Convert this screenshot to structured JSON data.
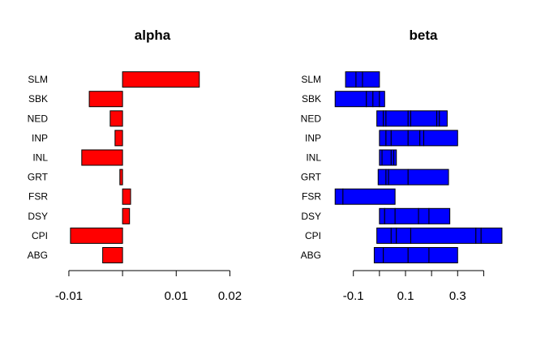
{
  "chart_data": [
    {
      "type": "bar",
      "orientation": "horizontal",
      "title": "alpha",
      "categories": [
        "ABG",
        "CPI",
        "DSY",
        "FSR",
        "GRT",
        "INL",
        "INP",
        "NED",
        "SBK",
        "SLM"
      ],
      "values": [
        -0.0037,
        -0.0097,
        0.0013,
        0.0015,
        -0.0005,
        -0.0076,
        -0.0014,
        -0.0023,
        -0.0062,
        0.0143
      ],
      "xlim": [
        -0.0115,
        0.0225
      ],
      "xticks": [
        -0.01,
        0.0,
        0.01,
        0.02
      ],
      "xtick_labels": [
        "-0.01",
        "",
        "0.01",
        "0.02"
      ],
      "bar_color": "#ff0000",
      "border_color": "#000000"
    },
    {
      "type": "bar",
      "orientation": "horizontal",
      "title": "beta",
      "categories": [
        "ABG",
        "CPI",
        "DSY",
        "FSR",
        "GRT",
        "INL",
        "INP",
        "NED",
        "SBK",
        "SLM"
      ],
      "segments": [
        [
          -0.02,
          0.015,
          0.11,
          0.19,
          0.3
        ],
        [
          -0.01,
          0.045,
          0.065,
          0.12,
          0.37,
          0.39,
          0.47
        ],
        [
          0.0,
          0.02,
          0.06,
          0.15,
          0.19,
          0.27
        ],
        [
          -0.17,
          -0.14,
          0.06
        ],
        [
          -0.005,
          0.025,
          0.035,
          0.11,
          0.265
        ],
        [
          0.0,
          0.01,
          0.045,
          0.055,
          0.065
        ],
        [
          0.0,
          0.025,
          0.045,
          0.11,
          0.155,
          0.17,
          0.3
        ],
        [
          -0.01,
          0.015,
          0.025,
          0.11,
          0.12,
          0.22,
          0.23,
          0.26
        ],
        [
          -0.17,
          -0.05,
          -0.025,
          0.0,
          0.02
        ],
        [
          -0.13,
          -0.09,
          -0.065,
          0.0
        ]
      ],
      "xlim": [
        -0.18,
        0.52
      ],
      "xticks": [
        -0.1,
        0.0,
        0.1,
        0.2,
        0.3,
        0.4
      ],
      "xtick_labels": [
        "-0.1",
        "",
        "0.1",
        "",
        "0.3",
        ""
      ],
      "bar_color": "#0000ff",
      "border_color": "#000000"
    }
  ]
}
